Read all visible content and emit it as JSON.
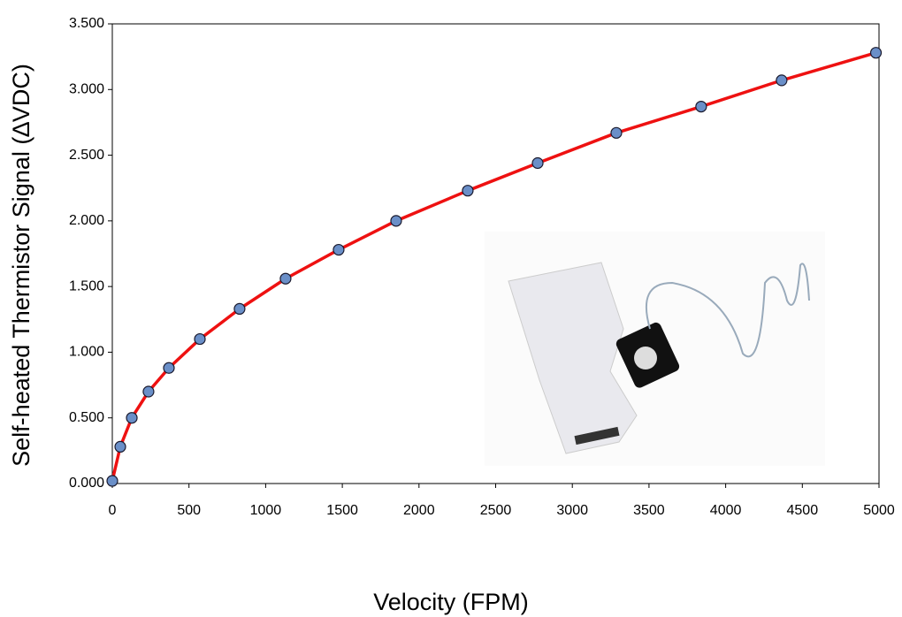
{
  "chart_data": {
    "type": "scatter",
    "x_label": "Velocity (FPM)",
    "y_label": "Self-heated Thermistor Signal (∆VDC)",
    "x": [
      0,
      52,
      127,
      236,
      369,
      571,
      830,
      1130,
      1476,
      1851,
      2318,
      2774,
      3287,
      3840,
      4365,
      4980
    ],
    "values": [
      0.02,
      0.28,
      0.5,
      0.7,
      0.88,
      1.1,
      1.33,
      1.56,
      1.78,
      2.0,
      2.23,
      2.44,
      2.67,
      2.87,
      3.07,
      3.28
    ],
    "line_color": "#ee1111",
    "marker_color": "#6a8fc8",
    "xlim": [
      0,
      5000
    ],
    "xticks": [
      0,
      500,
      1000,
      1500,
      2000,
      2500,
      3000,
      3500,
      4000,
      4500,
      5000
    ],
    "ylim": [
      0,
      3.5
    ],
    "yticks": [
      {
        "value": 0,
        "label": "0.000"
      },
      {
        "value": 0.5,
        "label": "0.500"
      },
      {
        "value": 1,
        "label": "1.000"
      },
      {
        "value": 1.5,
        "label": "1.500"
      },
      {
        "value": 2,
        "label": "2.000"
      },
      {
        "value": 2.5,
        "label": "2.500"
      },
      {
        "value": 3,
        "label": "3.000"
      },
      {
        "value": 3.5,
        "label": "3.500"
      }
    ]
  }
}
